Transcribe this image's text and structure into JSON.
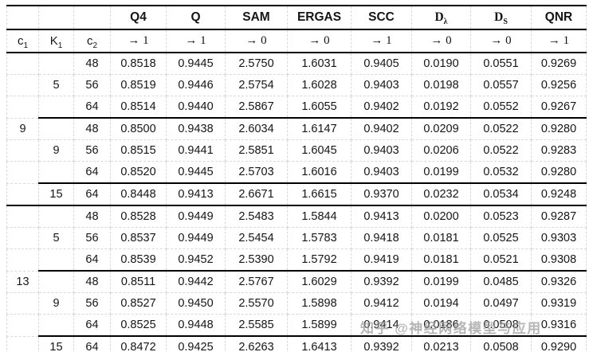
{
  "colors": {
    "red": "#f01414",
    "blue": "#2438c8"
  },
  "watermark": "知乎 @神经网络模型与应用",
  "table": {
    "param_headers": [
      {
        "base": "c",
        "sub": "1"
      },
      {
        "base": "K",
        "sub": "1"
      },
      {
        "base": "c",
        "sub": "2"
      }
    ],
    "metric_headers": [
      {
        "base": "Q4",
        "sub": "",
        "serif": false
      },
      {
        "base": "Q",
        "sub": "",
        "serif": false
      },
      {
        "base": "SAM",
        "sub": "",
        "serif": false
      },
      {
        "base": "ERGAS",
        "sub": "",
        "serif": false
      },
      {
        "base": "SCC",
        "sub": "",
        "serif": false
      },
      {
        "base": "D",
        "sub": "λ",
        "serif": true
      },
      {
        "base": "D",
        "sub": "S",
        "serif": true
      },
      {
        "base": "QNR",
        "sub": "",
        "serif": false
      }
    ],
    "targets": [
      "→ 1",
      "→ 1",
      "→ 0",
      "→ 0",
      "→ 1",
      "→ 0",
      "→ 0",
      "→ 1"
    ],
    "rows": [
      {
        "c1": "",
        "k1": "",
        "c2": "48",
        "sep": "none",
        "vals": [
          [
            "0.8518",
            ""
          ],
          [
            "0.9445",
            ""
          ],
          [
            "2.5750",
            ""
          ],
          [
            "1.6031",
            ""
          ],
          [
            "0.9405",
            "red"
          ],
          [
            "0.0190",
            "red"
          ],
          [
            "0.0551",
            ""
          ],
          [
            "0.9269",
            ""
          ]
        ]
      },
      {
        "c1": "",
        "k1": "5",
        "c2": "56",
        "sep": "none",
        "vals": [
          [
            "0.8519",
            ""
          ],
          [
            "0.9446",
            "red"
          ],
          [
            "2.5754",
            ""
          ],
          [
            "1.6028",
            ""
          ],
          [
            "0.9403",
            ""
          ],
          [
            "0.0198",
            ""
          ],
          [
            "0.0557",
            ""
          ],
          [
            "0.9256",
            ""
          ]
        ]
      },
      {
        "c1": "",
        "k1": "",
        "c2": "64",
        "sep": "none",
        "vals": [
          [
            "0.8514",
            ""
          ],
          [
            "0.9440",
            ""
          ],
          [
            "2.5867",
            ""
          ],
          [
            "1.6055",
            ""
          ],
          [
            "0.9402",
            ""
          ],
          [
            "0.0192",
            ""
          ],
          [
            "0.0552",
            ""
          ],
          [
            "0.9267",
            ""
          ]
        ]
      },
      {
        "c1": "9",
        "k1": "",
        "c2": "48",
        "sep": "k1",
        "vals": [
          [
            "0.8500",
            ""
          ],
          [
            "0.9438",
            ""
          ],
          [
            "2.6034",
            ""
          ],
          [
            "1.6147",
            ""
          ],
          [
            "0.9402",
            ""
          ],
          [
            "0.0209",
            ""
          ],
          [
            "0.0522",
            "red"
          ],
          [
            "0.9280",
            ""
          ]
        ]
      },
      {
        "c1": "",
        "k1": "9",
        "c2": "56",
        "sep": "none",
        "vals": [
          [
            "0.8515",
            ""
          ],
          [
            "0.9441",
            ""
          ],
          [
            "2.5851",
            ""
          ],
          [
            "1.6045",
            ""
          ],
          [
            "0.9403",
            ""
          ],
          [
            "0.0206",
            ""
          ],
          [
            "0.0522",
            "red"
          ],
          [
            "0.9283",
            "red"
          ]
        ]
      },
      {
        "c1": "",
        "k1": "",
        "c2": "64",
        "sep": "none",
        "vals": [
          [
            "0.8520",
            "red"
          ],
          [
            "0.9445",
            ""
          ],
          [
            "2.5703",
            "red"
          ],
          [
            "1.6016",
            "red"
          ],
          [
            "0.9403",
            ""
          ],
          [
            "0.0199",
            ""
          ],
          [
            "0.0532",
            ""
          ],
          [
            "0.9280",
            ""
          ]
        ]
      },
      {
        "c1": "",
        "k1": "15",
        "c2": "64",
        "sep": "k1",
        "vals": [
          [
            "0.8448",
            ""
          ],
          [
            "0.9413",
            ""
          ],
          [
            "2.6671",
            ""
          ],
          [
            "1.6615",
            ""
          ],
          [
            "0.9370",
            ""
          ],
          [
            "0.0232",
            ""
          ],
          [
            "0.0534",
            ""
          ],
          [
            "0.9248",
            ""
          ]
        ]
      },
      {
        "c1": "",
        "k1": "",
        "c2": "48",
        "sep": "full",
        "vals": [
          [
            "0.8528",
            ""
          ],
          [
            "0.9449",
            ""
          ],
          [
            "2.5483",
            ""
          ],
          [
            "1.5844",
            ""
          ],
          [
            "0.9413",
            ""
          ],
          [
            "0.0200",
            ""
          ],
          [
            "0.0523",
            ""
          ],
          [
            "0.9287",
            ""
          ]
        ]
      },
      {
        "c1": "",
        "k1": "5",
        "c2": "56",
        "sep": "none",
        "vals": [
          [
            "0.8537",
            ""
          ],
          [
            "0.9449",
            ""
          ],
          [
            "2.5454",
            ""
          ],
          [
            "1.5783",
            "blue"
          ],
          [
            "0.9418",
            ""
          ],
          [
            "0.0181",
            "blue"
          ],
          [
            "0.0525",
            ""
          ],
          [
            "0.9303",
            ""
          ]
        ]
      },
      {
        "c1": "",
        "k1": "",
        "c2": "64",
        "sep": "none",
        "vals": [
          [
            "0.8539",
            "blue"
          ],
          [
            "0.9452",
            "blue"
          ],
          [
            "2.5390",
            "blue"
          ],
          [
            "1.5792",
            ""
          ],
          [
            "0.9419",
            "blue"
          ],
          [
            "0.0181",
            "blue"
          ],
          [
            "0.0521",
            ""
          ],
          [
            "0.9308",
            ""
          ]
        ]
      },
      {
        "c1": "13",
        "k1": "",
        "c2": "48",
        "sep": "k1",
        "vals": [
          [
            "0.8511",
            ""
          ],
          [
            "0.9442",
            ""
          ],
          [
            "2.5767",
            ""
          ],
          [
            "1.6029",
            ""
          ],
          [
            "0.9392",
            ""
          ],
          [
            "0.0199",
            ""
          ],
          [
            "0.0485",
            "blue"
          ],
          [
            "0.9326",
            "blue"
          ]
        ]
      },
      {
        "c1": "",
        "k1": "9",
        "c2": "56",
        "sep": "none",
        "vals": [
          [
            "0.8527",
            ""
          ],
          [
            "0.9450",
            ""
          ],
          [
            "2.5570",
            ""
          ],
          [
            "1.5898",
            ""
          ],
          [
            "0.9412",
            ""
          ],
          [
            "0.0194",
            ""
          ],
          [
            "0.0497",
            ""
          ],
          [
            "0.9319",
            ""
          ]
        ]
      },
      {
        "c1": "",
        "k1": "",
        "c2": "64",
        "sep": "none",
        "vals": [
          [
            "0.8525",
            ""
          ],
          [
            "0.9448",
            ""
          ],
          [
            "2.5585",
            ""
          ],
          [
            "1.5899",
            ""
          ],
          [
            "0.9414",
            ""
          ],
          [
            "0.0186",
            ""
          ],
          [
            "0.0508",
            ""
          ],
          [
            "0.9316",
            ""
          ]
        ]
      },
      {
        "c1": "",
        "k1": "15",
        "c2": "64",
        "sep": "k1",
        "vals": [
          [
            "0.8472",
            ""
          ],
          [
            "0.9425",
            ""
          ],
          [
            "2.6263",
            ""
          ],
          [
            "1.6413",
            ""
          ],
          [
            "0.9392",
            ""
          ],
          [
            "0.0213",
            ""
          ],
          [
            "0.0508",
            ""
          ],
          [
            "0.9290",
            ""
          ]
        ]
      }
    ]
  }
}
